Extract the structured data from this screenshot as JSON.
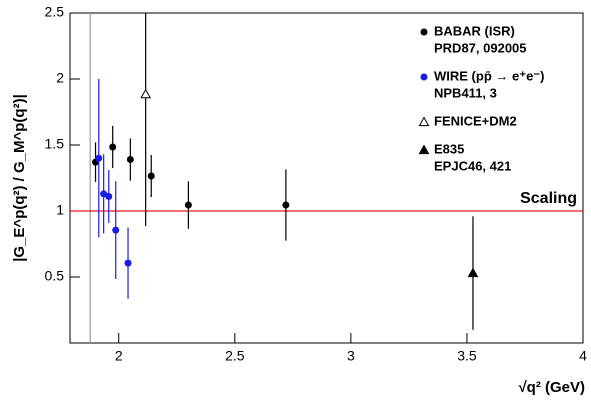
{
  "chart_data": {
    "type": "scatter",
    "x_label": "√q² (GeV)",
    "y_label": "|G_E^p(q²) / G_M^p(q²)|",
    "xlim": [
      1.79,
      4.0
    ],
    "ylim": [
      0,
      2.5
    ],
    "xticks": [
      2,
      2.5,
      3,
      3.5,
      4
    ],
    "yticks": [
      0.5,
      1,
      1.5,
      2,
      2.5
    ],
    "threshold_x": 1.877,
    "reference_line": {
      "y": 1,
      "label": "Scaling",
      "color": "#e8191b"
    },
    "series": [
      {
        "name": "BABAR (ISR)",
        "reference": "PRD87, 092005",
        "color": "#000000",
        "marker": "circle",
        "x": [
          1.9,
          1.974,
          2.05,
          2.14,
          2.3,
          2.72
        ],
        "values": [
          1.37,
          1.485,
          1.39,
          1.265,
          1.045,
          1.045
        ],
        "errors": [
          0.15,
          0.16,
          0.16,
          0.16,
          0.18,
          0.27
        ]
      },
      {
        "name": "WIRE (pp̄ → e⁺e⁻)",
        "reference": "NPB411, 3",
        "color": "#1a1aee",
        "marker": "circle",
        "x": [
          1.914,
          1.935,
          1.957,
          1.987,
          2.04
        ],
        "values": [
          1.4,
          1.13,
          1.11,
          0.855,
          0.605
        ],
        "errors": [
          0.6,
          0.3,
          0.2,
          0.37,
          0.27
        ]
      },
      {
        "name": "FENICE+DM2",
        "color": "#000000",
        "marker": "triangle-open",
        "x": [
          2.116
        ],
        "values": [
          1.885
        ],
        "errors": [
          1.0
        ]
      },
      {
        "name": "E835",
        "reference": "EPJC46, 421",
        "color": "#000000",
        "marker": "triangle",
        "x": [
          3.526
        ],
        "values": [
          0.53
        ],
        "errors": [
          0.43
        ]
      }
    ]
  }
}
